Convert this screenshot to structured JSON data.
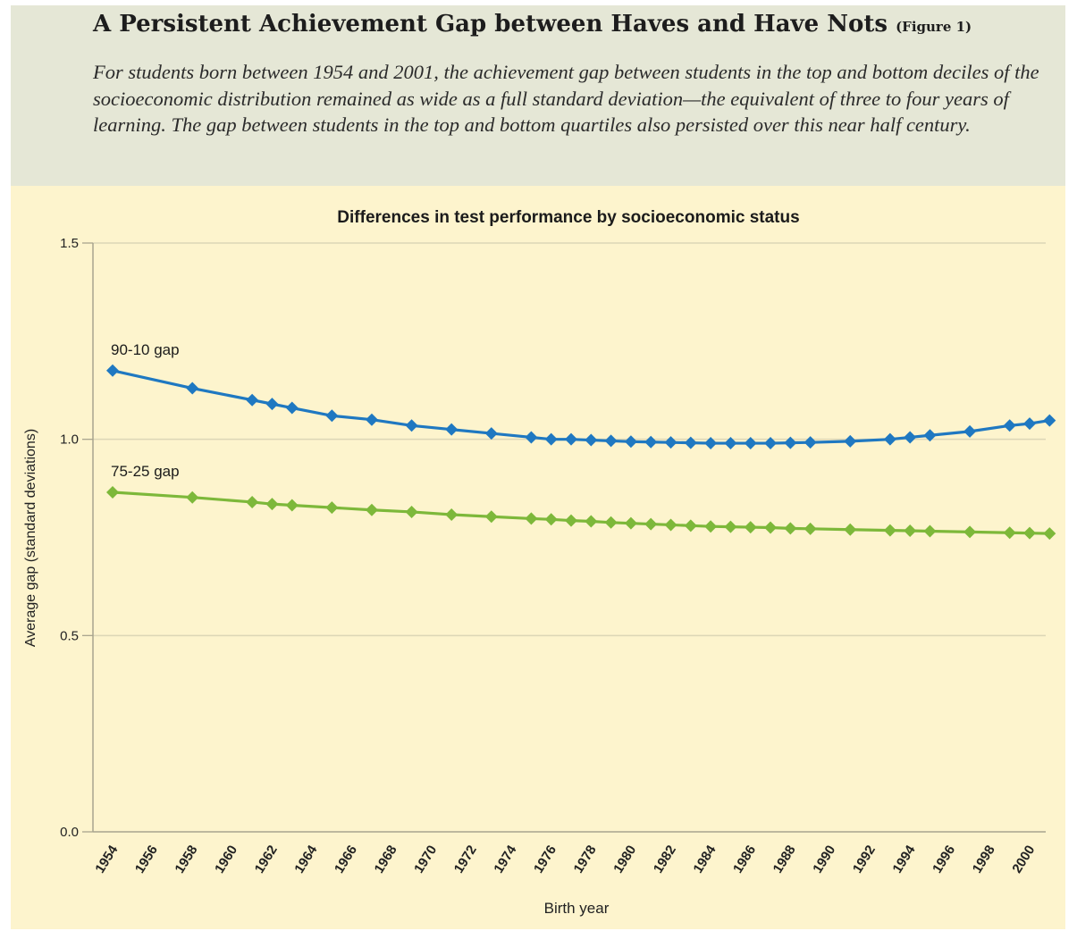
{
  "header": {
    "title": "A Persistent Achievement Gap between Haves and Have Nots",
    "figure_ref": "(Figure 1)",
    "subtitle": "For students born between 1954 and 2001, the achievement gap between students in the top and bottom deciles of the socioeconomic distribution remained as wide as a full standard deviation—the equivalent of three to four years of learning. The gap between students in the top and bottom quartiles also persisted over this near half century."
  },
  "chart_data": {
    "type": "line",
    "title": "Differences in test performance by socioeconomic status",
    "xlabel": "Birth year",
    "ylabel": "Average gap (standard deviations)",
    "xlim": [
      1954,
      2000
    ],
    "ylim": [
      0,
      1.5
    ],
    "x_ticks": [
      "1954",
      "1956",
      "1958",
      "1960",
      "1962",
      "1964",
      "1966",
      "1968",
      "1970",
      "1972",
      "1974",
      "1976",
      "1978",
      "1980",
      "1982",
      "1984",
      "1986",
      "1988",
      "1990",
      "1992",
      "1994",
      "1996",
      "1998",
      "2000"
    ],
    "y_ticks": [
      "0.0",
      "0.5",
      "1.0",
      "1.5"
    ],
    "grid": "horizontal",
    "series": [
      {
        "name": "90-10 gap",
        "color": "#1f78c1",
        "marker": "diamond",
        "points": [
          [
            1954,
            1.175
          ],
          [
            1958,
            1.13
          ],
          [
            1961,
            1.1
          ],
          [
            1962,
            1.09
          ],
          [
            1963,
            1.08
          ],
          [
            1965,
            1.06
          ],
          [
            1967,
            1.05
          ],
          [
            1969,
            1.035
          ],
          [
            1971,
            1.025
          ],
          [
            1973,
            1.015
          ],
          [
            1975,
            1.005
          ],
          [
            1976,
            1.0
          ],
          [
            1977,
            1.0
          ],
          [
            1978,
            0.998
          ],
          [
            1979,
            0.996
          ],
          [
            1980,
            0.994
          ],
          [
            1981,
            0.993
          ],
          [
            1982,
            0.992
          ],
          [
            1983,
            0.991
          ],
          [
            1984,
            0.99
          ],
          [
            1985,
            0.99
          ],
          [
            1986,
            0.99
          ],
          [
            1987,
            0.99
          ],
          [
            1988,
            0.991
          ],
          [
            1989,
            0.992
          ],
          [
            1991,
            0.995
          ],
          [
            1993,
            1.0
          ],
          [
            1994,
            1.005
          ],
          [
            1995,
            1.01
          ],
          [
            1997,
            1.02
          ],
          [
            1999,
            1.035
          ],
          [
            2000,
            1.04
          ],
          [
            2001,
            1.048
          ]
        ]
      },
      {
        "name": "75-25 gap",
        "color": "#7db83a",
        "marker": "diamond",
        "points": [
          [
            1954,
            0.865
          ],
          [
            1958,
            0.852
          ],
          [
            1961,
            0.84
          ],
          [
            1962,
            0.835
          ],
          [
            1963,
            0.832
          ],
          [
            1965,
            0.826
          ],
          [
            1967,
            0.82
          ],
          [
            1969,
            0.815
          ],
          [
            1971,
            0.808
          ],
          [
            1973,
            0.803
          ],
          [
            1975,
            0.798
          ],
          [
            1976,
            0.796
          ],
          [
            1977,
            0.793
          ],
          [
            1978,
            0.791
          ],
          [
            1979,
            0.788
          ],
          [
            1980,
            0.786
          ],
          [
            1981,
            0.784
          ],
          [
            1982,
            0.782
          ],
          [
            1983,
            0.78
          ],
          [
            1984,
            0.778
          ],
          [
            1985,
            0.777
          ],
          [
            1986,
            0.776
          ],
          [
            1987,
            0.775
          ],
          [
            1988,
            0.773
          ],
          [
            1989,
            0.772
          ],
          [
            1991,
            0.77
          ],
          [
            1993,
            0.768
          ],
          [
            1994,
            0.767
          ],
          [
            1995,
            0.766
          ],
          [
            1997,
            0.764
          ],
          [
            1999,
            0.762
          ],
          [
            2000,
            0.761
          ],
          [
            2001,
            0.76
          ]
        ]
      }
    ]
  }
}
